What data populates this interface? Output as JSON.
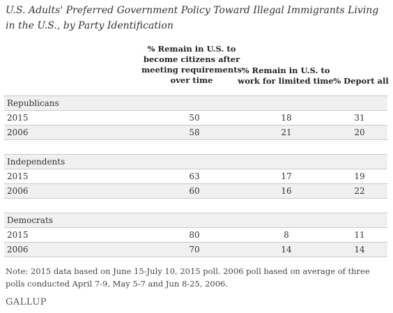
{
  "title": "U.S. Adults' Preferred Government Policy Toward Illegal Immigrants Living in the U.S., by Party Identification",
  "columns": [
    "% Remain in U.S. to become citizens after meeting requirements over time",
    "% Remain in U.S. to work for limited time",
    "% Deport all"
  ],
  "groups": [
    {
      "name": "Republicans",
      "rows": [
        {
          "year": "2015",
          "values": [
            "50",
            "18",
            "31"
          ]
        },
        {
          "year": "2006",
          "values": [
            "58",
            "21",
            "20"
          ]
        }
      ]
    },
    {
      "name": "Independents",
      "rows": [
        {
          "year": "2015",
          "values": [
            "63",
            "17",
            "19"
          ]
        },
        {
          "year": "2006",
          "values": [
            "60",
            "16",
            "22"
          ]
        }
      ]
    },
    {
      "name": "Democrats",
      "rows": [
        {
          "year": "2015",
          "values": [
            "80",
            "8",
            "11"
          ]
        },
        {
          "year": "2006",
          "values": [
            "70",
            "14",
            "14"
          ]
        }
      ]
    }
  ],
  "note": "Note: 2015 data based on June 15-July 10, 2015 poll. 2006 poll based on average of three polls conducted April 7-9, May 5-7 and Jun 8-25, 2006.",
  "brand": "GALLUP"
}
